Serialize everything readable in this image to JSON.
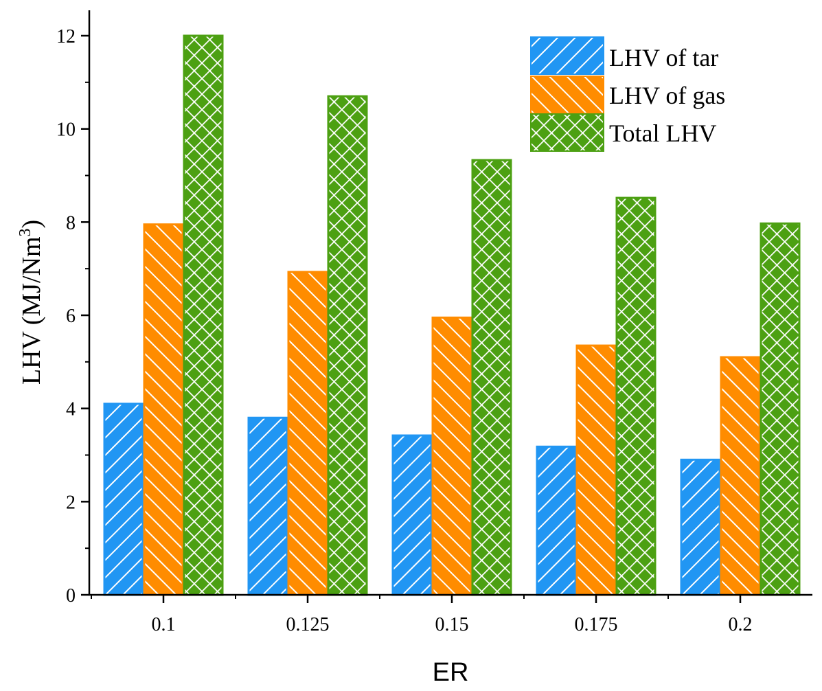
{
  "chart_data": {
    "type": "bar",
    "categories": [
      "0.1",
      "0.125",
      "0.15",
      "0.175",
      "0.2"
    ],
    "series": [
      {
        "name": "LHV of tar",
        "values": [
          4.1,
          3.8,
          3.42,
          3.18,
          2.9
        ],
        "color": "#2196F3",
        "pattern": "diagonal-forward"
      },
      {
        "name": "LHV of gas",
        "values": [
          7.95,
          6.93,
          5.95,
          5.35,
          5.1
        ],
        "color": "#FF8C00",
        "pattern": "diagonal-backward"
      },
      {
        "name": "Total LHV",
        "values": [
          12.0,
          10.7,
          9.33,
          8.52,
          7.97
        ],
        "color": "#4CA012",
        "pattern": "crosshatch"
      }
    ],
    "xlabel": "ER",
    "ylabel_main": "LHV (MJ/Nm",
    "ylabel_sup": "3",
    "ylabel_end": ")",
    "ylim": [
      0,
      12
    ],
    "yticks": [
      "0",
      "2",
      "4",
      "6",
      "8",
      "10",
      "12"
    ],
    "grid": false,
    "legend_position": "top-right"
  }
}
